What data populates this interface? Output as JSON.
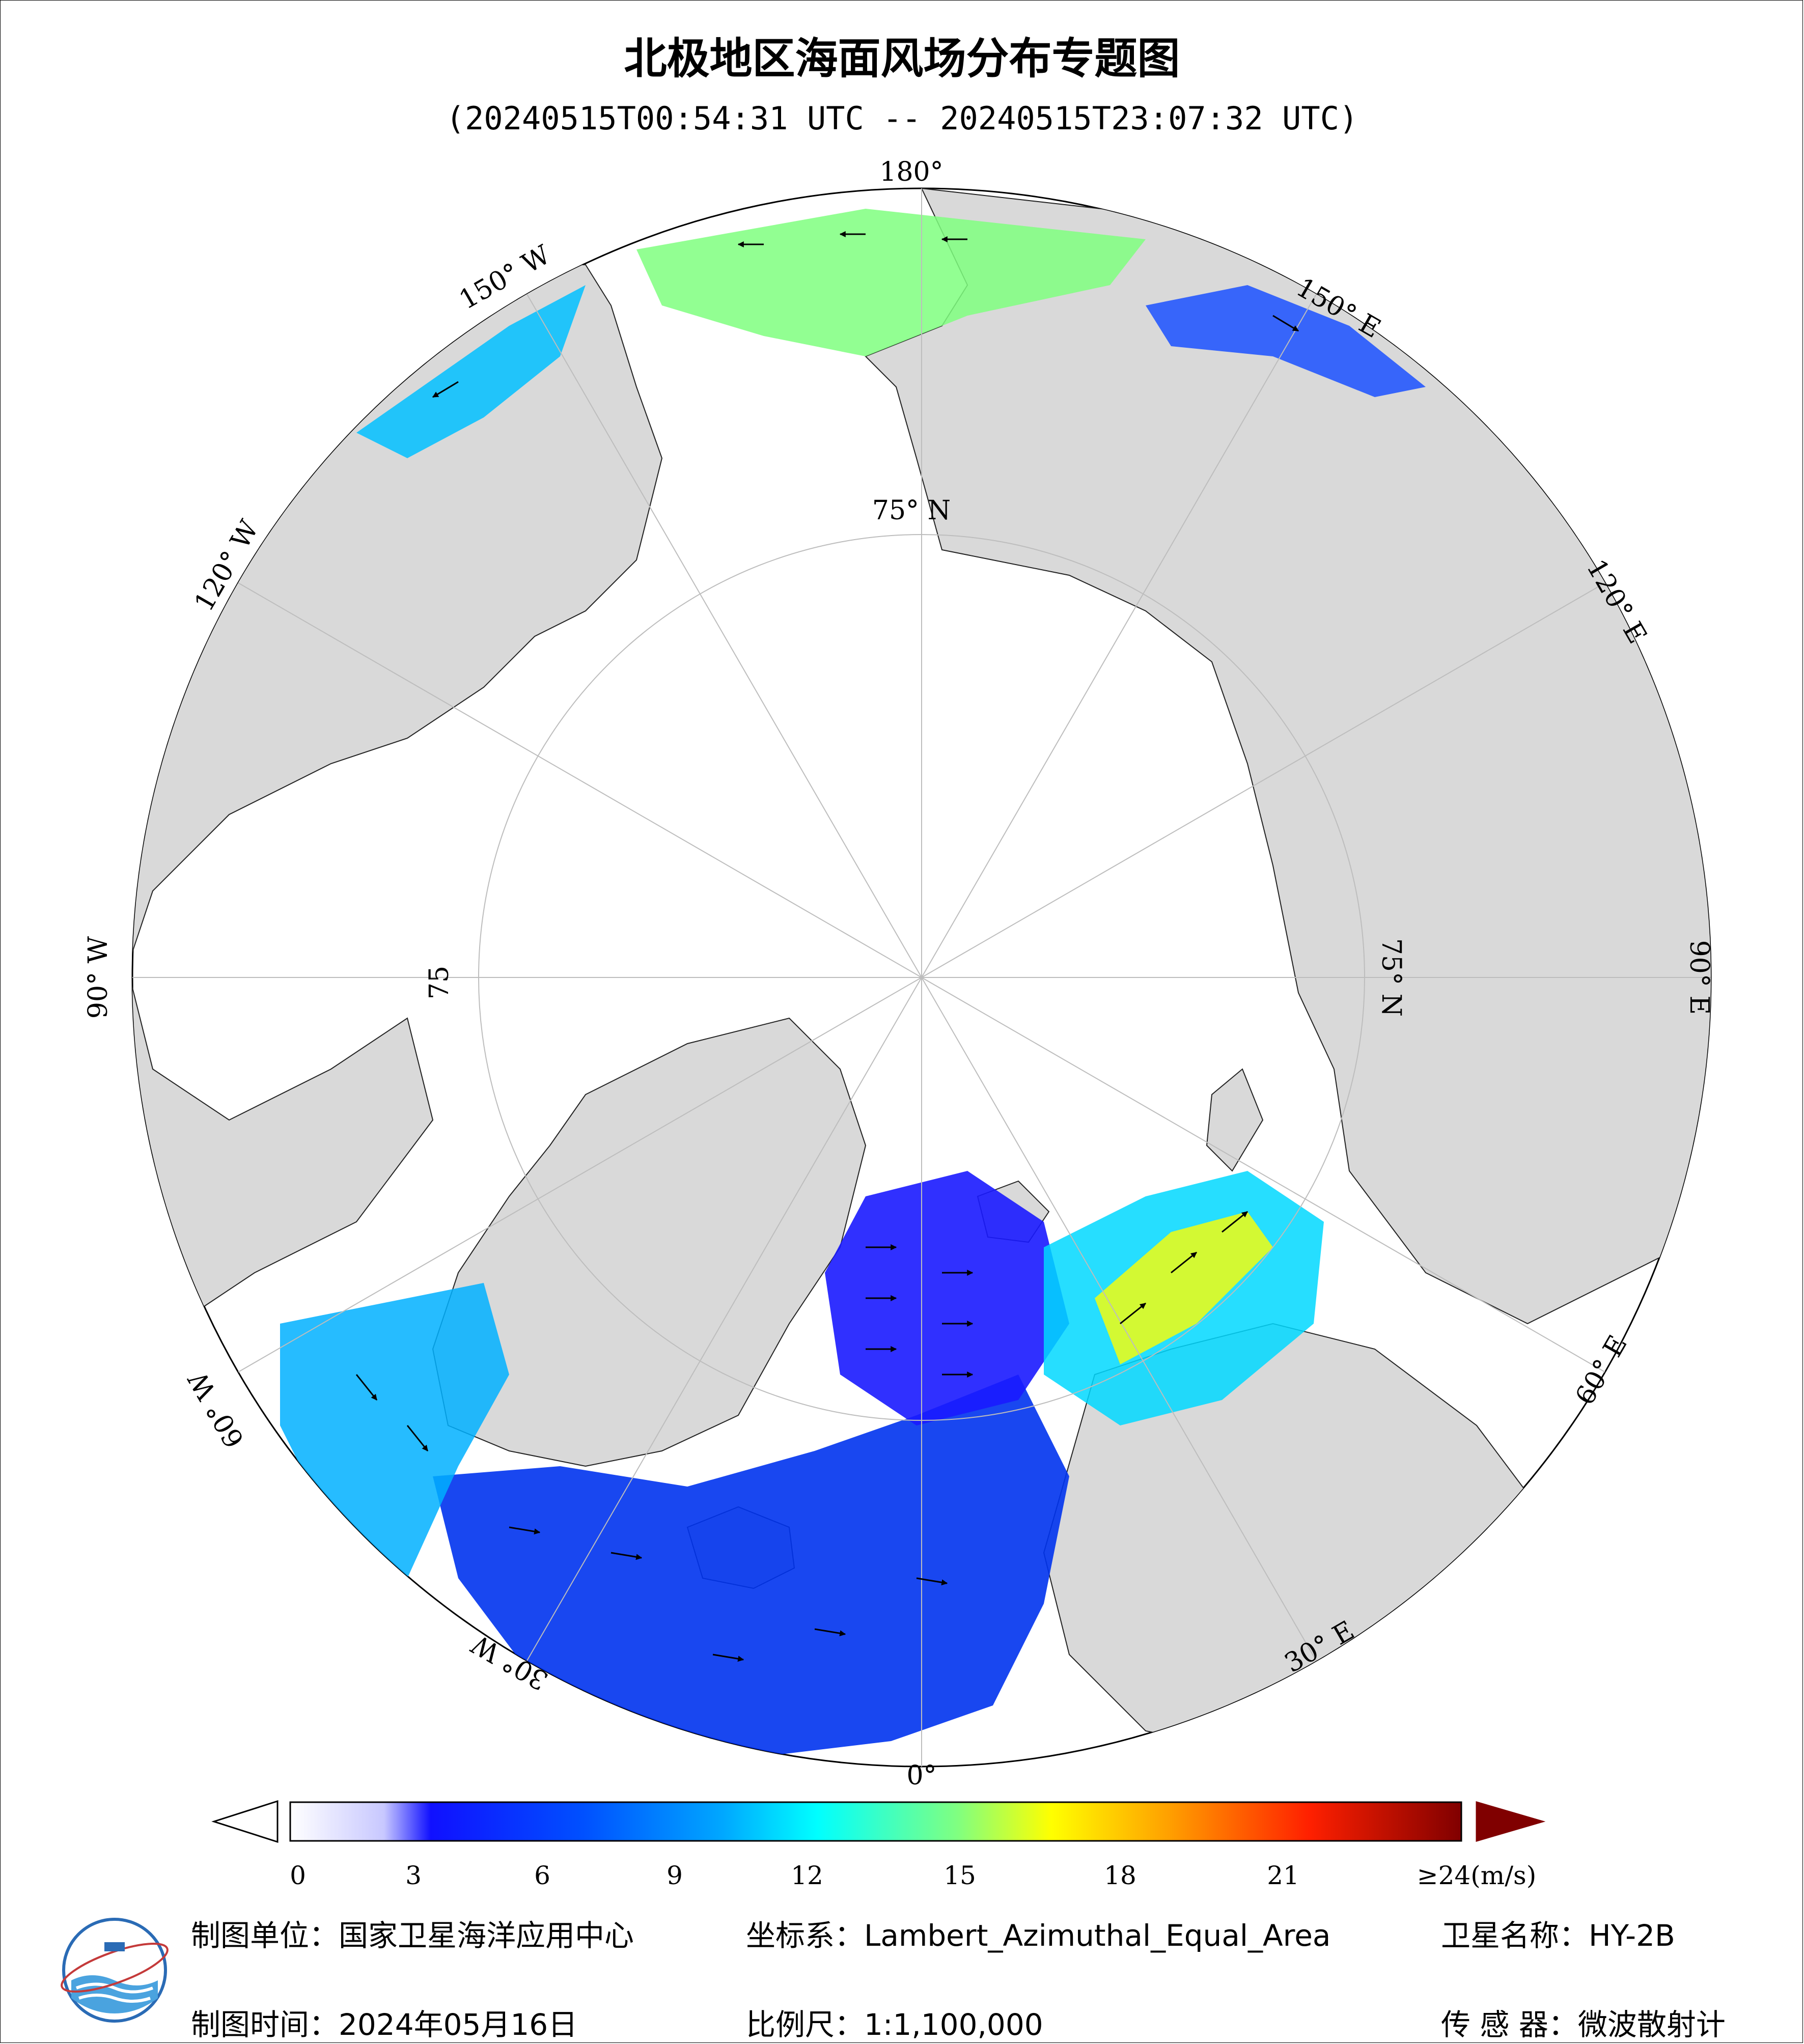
{
  "header": {
    "title": "北极地区海面风场分布专题图",
    "time_range": "(20240515T00:54:31 UTC -- 20240515T23:07:32 UTC)"
  },
  "map": {
    "projection_labels": {
      "lon_180": "180°",
      "lon_150w": "150° W",
      "lon_150e": "150° E",
      "lon_120w": "120° W",
      "lon_120e": "120° E",
      "lon_90w": "90° W",
      "lon_90e": "90° E",
      "lon_60w": "60° W",
      "lon_60e": "60° E",
      "lon_30w": "30° W",
      "lon_30e": "30° E",
      "lon_0": "0°",
      "lat_75n_top": "75° N",
      "lat_75n_right": "75° N",
      "lat_75_left": "75"
    },
    "colors": {
      "land": "#d9d9d9",
      "ice_or_nodata": "#ffffff",
      "grid": "#bdbdbd"
    }
  },
  "colorbar": {
    "ticks": [
      "0",
      "3",
      "6",
      "9",
      "12",
      "15",
      "18",
      "21",
      "≥24(m/s)"
    ],
    "min_speed": 0,
    "max_speed": 24,
    "unit": "m/s",
    "gradient_stops": [
      "#ffffff",
      "#c8c8ff",
      "#1010ff",
      "#0050ff",
      "#00a0ff",
      "#00ffff",
      "#80ff80",
      "#ffff00",
      "#ffa000",
      "#ff3000",
      "#e00000",
      "#800000"
    ]
  },
  "footer": {
    "unit_label": "制图单位：国家卫星海洋应用中心",
    "date_label": "制图时间：2024年05月16日",
    "crs_label": "坐标系：Lambert_Azimuthal_Equal_Area",
    "scale_label": "比例尺：1:1,100,000",
    "satellite_label": "卫星名称：HY-2B",
    "sensor_label": "传 感 器：微波散射计"
  }
}
